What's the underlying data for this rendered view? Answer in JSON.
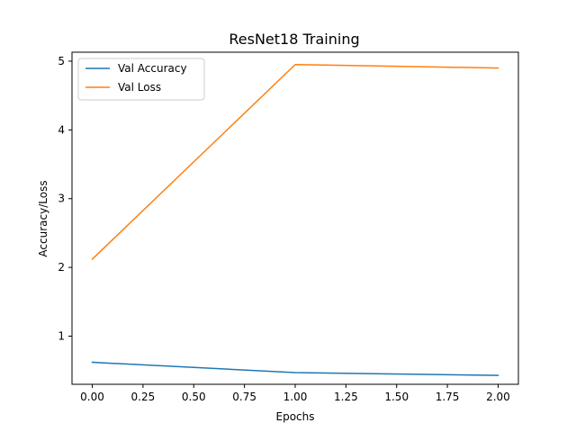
{
  "chart_data": {
    "type": "line",
    "title": "ResNet18 Training",
    "xlabel": "Epochs",
    "ylabel": "Accuracy/Loss",
    "x": [
      0,
      1,
      2
    ],
    "xlim": [
      -0.1,
      2.1
    ],
    "ylim": [
      0.3,
      5.13
    ],
    "xticks": [
      "0.00",
      "0.25",
      "0.50",
      "0.75",
      "1.00",
      "1.25",
      "1.50",
      "1.75",
      "2.00"
    ],
    "yticks": [
      "1",
      "2",
      "3",
      "4",
      "5"
    ],
    "grid": false,
    "legend_position": "upper-left",
    "series": [
      {
        "name": "Val Accuracy",
        "values": [
          0.62,
          0.47,
          0.43
        ],
        "color": "#1f77b4"
      },
      {
        "name": "Val Loss",
        "values": [
          2.12,
          4.95,
          4.9
        ],
        "color": "#ff7f0e"
      }
    ]
  }
}
